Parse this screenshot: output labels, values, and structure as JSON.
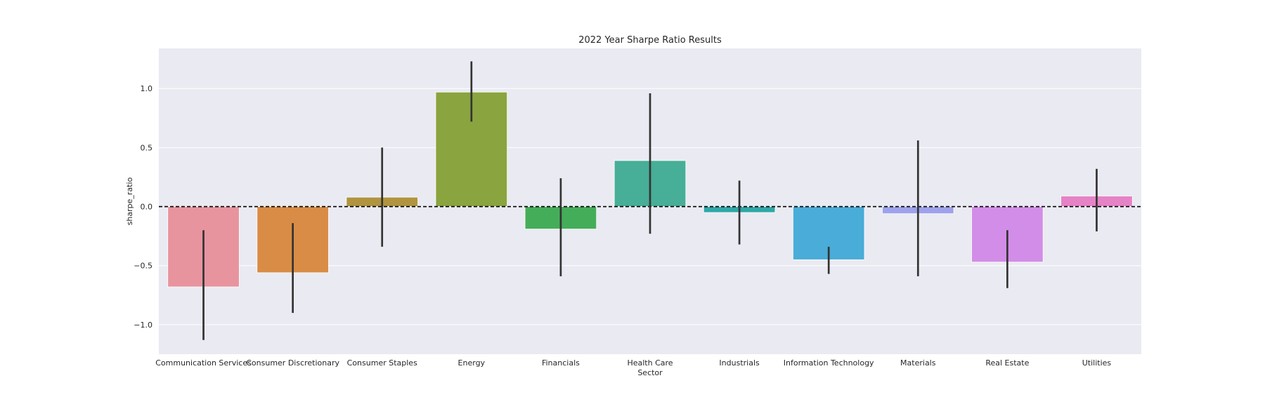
{
  "chart_data": {
    "type": "bar",
    "title": "2022 Year Sharpe Ratio Results",
    "xlabel": "Sector",
    "ylabel": "sharpe_ratio",
    "ylim": [
      -1.25,
      1.34
    ],
    "yticks": [
      1.0,
      0.5,
      0.0,
      -0.5,
      -1.0
    ],
    "ytick_labels": [
      "1.0",
      "0.5",
      "0.0",
      "−0.5",
      "−1.0"
    ],
    "grid": true,
    "reference_line": {
      "y": 0.0,
      "style": "dashed",
      "color": "#000000"
    },
    "categories": [
      "Communication Services",
      "Consumer Discretionary",
      "Consumer Staples",
      "Energy",
      "Financials",
      "Health Care",
      "Industrials",
      "Information Technology",
      "Materials",
      "Real Estate",
      "Utilities"
    ],
    "values": [
      -0.68,
      -0.56,
      0.08,
      0.97,
      -0.19,
      0.39,
      -0.05,
      -0.45,
      -0.06,
      -0.47,
      0.09
    ],
    "error_low": [
      -1.13,
      -0.9,
      -0.34,
      0.72,
      -0.59,
      -0.23,
      -0.32,
      -0.57,
      -0.59,
      -0.69,
      -0.21
    ],
    "error_high": [
      -0.2,
      -0.14,
      0.5,
      1.23,
      0.24,
      0.96,
      0.22,
      -0.34,
      0.56,
      -0.2,
      0.32
    ],
    "colors": [
      "#e8949f",
      "#d98c45",
      "#b09440",
      "#8aa43f",
      "#44ad5a",
      "#47ae97",
      "#2fa8a8",
      "#4aacd8",
      "#9ea2ec",
      "#d28de8",
      "#e583c6"
    ],
    "plot_background": "#eaeaf2",
    "errorbar_color": "#333333"
  }
}
